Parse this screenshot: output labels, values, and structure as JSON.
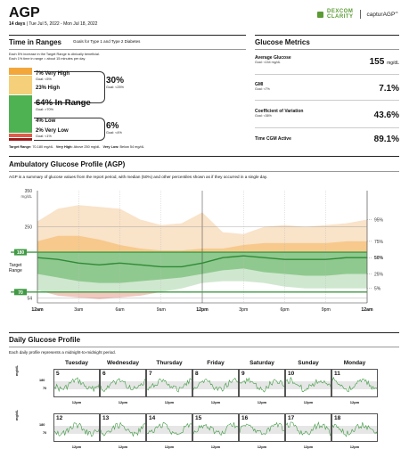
{
  "header": {
    "title": "AGP",
    "days": "14 days",
    "date_range": "Tue Jul 5, 2022 - Mon Jul 18, 2022",
    "logo_dexcom": "DEXCOM",
    "logo_clarity": "CLARITY",
    "logo_captur": "capturAGP",
    "logo_captur_sub": "v5"
  },
  "tir": {
    "title": "Time in Ranges",
    "goals_note": "Goals for Type 1 and Type 2 Diabetes",
    "note_line1": "Each 5% increase in the Target Range is clinically beneficial.",
    "note_line2": "Each 1% time in range = about 15 minutes per day",
    "very_high": "7% Very High",
    "very_high_goal": "Goal: <5%",
    "high": "23% High",
    "above_total": "30%",
    "above_goal": "Goal: <25%",
    "in_range": "64% In Range",
    "in_range_goal": "Goal: >70%",
    "low": "4% Low",
    "very_low": "2% Very Low",
    "very_low_goal": "Goal: <1%",
    "below_total": "6%",
    "below_goal": "Goal: <4%",
    "footer_target_label": "Target Range:",
    "footer_target": "70-180 mg/dL",
    "footer_vh_label": "Very High:",
    "footer_vh": "Above 250 mg/dL",
    "footer_vl_label": "Very Low:",
    "footer_vl": "Below 54 mg/dL",
    "colors": {
      "very_high": "#f3a73a",
      "high": "#f6cf7a",
      "in_range": "#4eb152",
      "low": "#e35a4a",
      "very_low": "#9c1c1c"
    }
  },
  "metrics": {
    "title": "Glucose Metrics",
    "items": [
      {
        "label": "Average Glucose",
        "goal": "Goal: <154 mg/dL",
        "value": "155",
        "unit": "mg/dL"
      },
      {
        "label": "GMI",
        "goal": "Goal: <7%",
        "value": "7.1%",
        "unit": ""
      },
      {
        "label": "Coefficient of Variation",
        "goal": "Goal: <36%",
        "value": "43.6%",
        "unit": ""
      },
      {
        "label": "Time CGM Active",
        "goal": "",
        "value": "89.1%",
        "unit": ""
      }
    ]
  },
  "agp": {
    "title": "Ambulatory Glucose Profile (AGP)",
    "description": "AGP is a summary of glucose values from the report period, with median (50%) and other percentiles shown as if they occurred in a single day.",
    "y_unit": "mg/dL",
    "target_label_line1": "Target",
    "target_label_line2": "Range"
  },
  "chart_data": {
    "type": "area",
    "title": "Ambulatory Glucose Profile (AGP)",
    "xlabel": "",
    "ylabel": "mg/dL",
    "x_ticks": [
      "12am",
      "3am",
      "6am",
      "9am",
      "12pm",
      "3pm",
      "6pm",
      "9pm",
      "12am"
    ],
    "y_ticks": [
      54,
      70,
      180,
      250,
      350
    ],
    "ylim": [
      40,
      350
    ],
    "target_range": [
      70,
      180
    ],
    "percentile_labels": [
      "95%",
      "75%",
      "50%",
      "25%",
      "5%"
    ],
    "x_hours": [
      0,
      1.5,
      3,
      4.5,
      6,
      7.5,
      9,
      10.5,
      12,
      13.5,
      15,
      16.5,
      18,
      19.5,
      21,
      22.5,
      24
    ],
    "series": [
      {
        "name": "95%",
        "values": [
          265,
          300,
          310,
          305,
          300,
          270,
          255,
          260,
          290,
          235,
          230,
          250,
          255,
          250,
          255,
          260,
          270
        ]
      },
      {
        "name": "75%",
        "values": [
          210,
          225,
          225,
          215,
          200,
          190,
          185,
          185,
          190,
          190,
          200,
          205,
          205,
          205,
          205,
          210,
          210
        ]
      },
      {
        "name": "50%",
        "values": [
          165,
          160,
          150,
          145,
          150,
          145,
          140,
          140,
          150,
          165,
          170,
          165,
          160,
          160,
          160,
          165,
          165
        ]
      },
      {
        "name": "25%",
        "values": [
          120,
          110,
          100,
          95,
          95,
          100,
          105,
          110,
          120,
          130,
          135,
          125,
          120,
          115,
          115,
          120,
          120
        ]
      },
      {
        "name": "5%",
        "values": [
          75,
          60,
          55,
          50,
          55,
          60,
          70,
          80,
          95,
          100,
          100,
          95,
          85,
          80,
          80,
          80,
          80
        ]
      }
    ]
  },
  "daily": {
    "title": "Daily Glucose Profile",
    "description": "Each daily profile represents a midnight-to-midnight period.",
    "weekdays": [
      "Tuesday",
      "Wednesday",
      "Thursday",
      "Friday",
      "Saturday",
      "Sunday",
      "Monday"
    ],
    "week1_dates": [
      "5",
      "6",
      "7",
      "8",
      "9",
      "10",
      "11"
    ],
    "week2_dates": [
      "12",
      "13",
      "14",
      "15",
      "16",
      "17",
      "18"
    ],
    "noon_label": "12pm",
    "y_unit": "mg/dL",
    "y_ticks": [
      "180",
      "70"
    ]
  }
}
